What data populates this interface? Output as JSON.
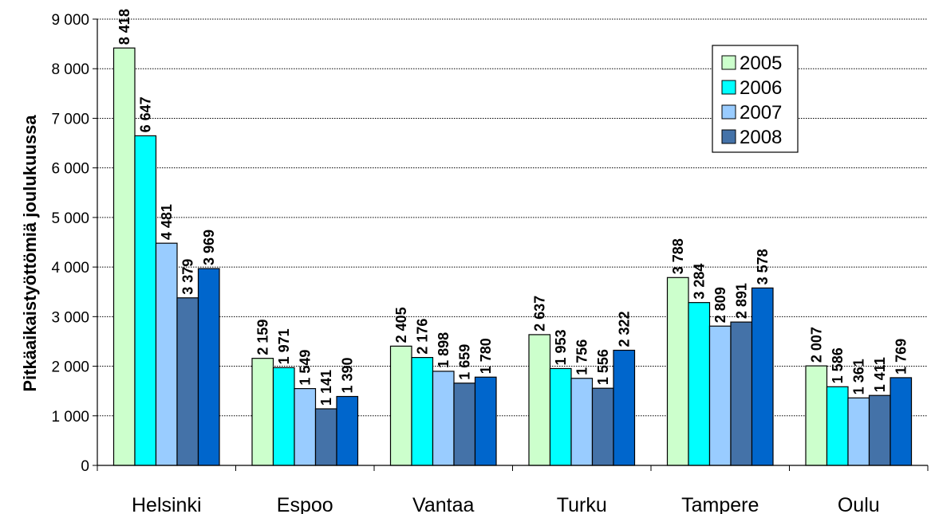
{
  "chart_data": {
    "type": "bar",
    "title": "",
    "ylabel": "Pitkäaikaistyöttömiä joulukuussa",
    "xlabel": "",
    "ylim": [
      0,
      9000
    ],
    "ytick_step": 1000,
    "ytick_labels": [
      "0",
      "1 000",
      "2 000",
      "3 000",
      "4 000",
      "5 000",
      "6 000",
      "7 000",
      "8 000",
      "9 000"
    ],
    "grid": true,
    "legend_position": "top-right",
    "categories": [
      "Helsinki",
      "Espoo",
      "Vantaa",
      "Turku",
      "Tampere",
      "Oulu"
    ],
    "series": [
      {
        "name": "2005",
        "color": "#ccffcc",
        "values": [
          8418,
          2159,
          2405,
          2637,
          3788,
          2007
        ],
        "labels": [
          "8 418",
          "2 159",
          "2 405",
          "2 637",
          "3 788",
          "2 007"
        ]
      },
      {
        "name": "2006",
        "color": "#00ffff",
        "values": [
          6647,
          1971,
          2176,
          1953,
          3284,
          1586
        ],
        "labels": [
          "6 647",
          "1 971",
          "2 176",
          "1 953",
          "3 284",
          "1 586"
        ]
      },
      {
        "name": "2007",
        "color": "#99ccff",
        "values": [
          4481,
          1549,
          1898,
          1756,
          2809,
          1361
        ],
        "labels": [
          "4 481",
          "1 549",
          "1 898",
          "1 756",
          "2 809",
          "1 361"
        ]
      },
      {
        "name": "2008",
        "color": "#4472a8",
        "values": [
          3379,
          1141,
          1659,
          1556,
          2891,
          1411
        ],
        "labels": [
          "3 379",
          "1 141",
          "1 659",
          "1 556",
          "2 891",
          "1 411"
        ]
      },
      {
        "name": "",
        "color": "#0066cc",
        "values": [
          3969,
          1390,
          1780,
          2322,
          3578,
          1769
        ],
        "labels": [
          "3 969",
          "1 390",
          "1 780",
          "2 322",
          "3 578",
          "1 769"
        ]
      }
    ]
  }
}
